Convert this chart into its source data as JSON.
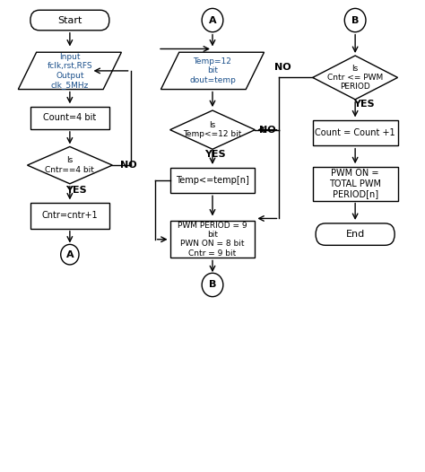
{
  "background_color": "#ffffff",
  "box_edge_color": "#000000",
  "box_face_color": "#ffffff",
  "text_color": "#000000",
  "blue_text_color": "#1a4f8a",
  "arrow_color": "#000000",
  "font_size": 7,
  "fig_width": 4.74,
  "fig_height": 5.26,
  "dpi": 100,
  "xlim": [
    0,
    14
  ],
  "ylim": [
    0,
    14
  ]
}
